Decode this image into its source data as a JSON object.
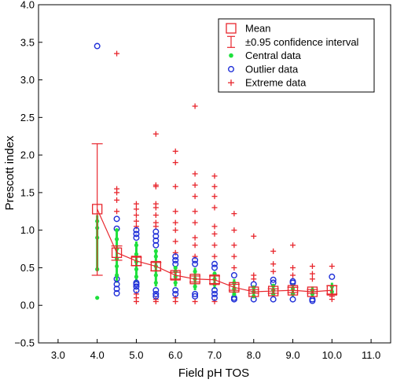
{
  "chart_data": {
    "type": "scatter",
    "title": "",
    "xlabel": "Field pH TOS",
    "ylabel": "Prescott index",
    "xlim": [
      2.5,
      11.5
    ],
    "ylim": [
      -0.5,
      4.0
    ],
    "x_ticks": [
      "3.0",
      "4.0",
      "5.0",
      "6.0",
      "7.0",
      "8.0",
      "9.0",
      "10.0",
      "11.0"
    ],
    "y_ticks": [
      "−0.5",
      "0.0",
      "0.5",
      "1.0",
      "1.5",
      "2.0",
      "2.5",
      "3.0",
      "3.5",
      "4.0"
    ],
    "grid": false,
    "legend_position": "top-right",
    "legend": [
      {
        "key": "mean",
        "label": "Mean",
        "color": "#e8262d"
      },
      {
        "key": "ci",
        "label": "±0.95 confidence interval",
        "color": "#e8262d"
      },
      {
        "key": "central",
        "label": "Central data",
        "color": "#1ee03c"
      },
      {
        "key": "outlier",
        "label": "Outlier data",
        "color": "#1f2fd8"
      },
      {
        "key": "extreme",
        "label": "Extreme data",
        "color": "#e8262d"
      }
    ],
    "groups": [
      {
        "x": 4.0,
        "mean": 1.28,
        "ci": [
          0.4,
          2.15
        ],
        "central_range": [
          0.48,
          1.2
        ],
        "central": [
          0.1,
          0.48,
          0.9,
          1.03,
          1.12
        ],
        "outlier": [
          3.45
        ],
        "extreme": []
      },
      {
        "x": 4.5,
        "mean": 0.7,
        "ci": [
          0.6,
          0.79
        ],
        "central_range": [
          0.3,
          1.02
        ],
        "central": [
          0.4,
          0.52,
          0.62,
          0.75,
          0.88,
          1.0
        ],
        "outlier": [
          0.16,
          0.22,
          0.28,
          0.35,
          1.02,
          1.15
        ],
        "extreme": [
          1.25,
          1.4,
          1.5,
          1.55,
          3.35
        ]
      },
      {
        "x": 5.0,
        "mean": 0.59,
        "ci": [
          0.53,
          0.64
        ],
        "central_range": [
          0.32,
          0.85
        ],
        "central": [
          0.38,
          0.48,
          0.58,
          0.68,
          0.8
        ],
        "outlier": [
          0.2,
          0.25,
          0.28,
          0.3,
          0.9,
          0.95,
          1.0
        ],
        "extreme": [
          0.05,
          0.1,
          0.15,
          1.05,
          1.12,
          1.2,
          1.28,
          1.35
        ]
      },
      {
        "x": 5.5,
        "mean": 0.52,
        "ci": [
          0.46,
          0.57
        ],
        "central_range": [
          0.25,
          0.75
        ],
        "central": [
          0.3,
          0.4,
          0.52,
          0.65,
          0.72
        ],
        "outlier": [
          0.12,
          0.15,
          0.2,
          0.8,
          0.86,
          0.92,
          0.98
        ],
        "extreme": [
          0.05,
          0.08,
          1.05,
          1.1,
          1.2,
          1.3,
          1.35,
          1.58,
          1.6,
          2.28
        ]
      },
      {
        "x": 6.0,
        "mean": 0.4,
        "ci": [
          0.35,
          0.44
        ],
        "central_range": [
          0.25,
          0.5
        ],
        "central": [
          0.3,
          0.38,
          0.45,
          0.5
        ],
        "outlier": [
          0.15,
          0.2,
          0.55,
          0.6,
          0.65
        ],
        "extreme": [
          0.05,
          0.1,
          0.7,
          0.85,
          1.0,
          1.1,
          1.25,
          1.58,
          1.9,
          2.05
        ]
      },
      {
        "x": 6.5,
        "mean": 0.35,
        "ci": [
          0.31,
          0.39
        ],
        "central_range": [
          0.2,
          0.5
        ],
        "central": [
          0.25,
          0.35,
          0.45
        ],
        "outlier": [
          0.12,
          0.15,
          0.55,
          0.6
        ],
        "extreme": [
          0.05,
          0.65,
          0.8,
          0.9,
          1.1,
          1.25,
          1.45,
          1.6,
          1.75,
          2.65
        ]
      },
      {
        "x": 7.0,
        "mean": 0.34,
        "ci": [
          0.29,
          0.39
        ],
        "central_range": [
          0.22,
          0.45
        ],
        "central": [
          0.28,
          0.35,
          0.42
        ],
        "outlier": [
          0.1,
          0.15,
          0.2,
          0.5,
          0.55
        ],
        "extreme": [
          0.05,
          0.65,
          0.8,
          0.95,
          1.05,
          1.3,
          1.45,
          1.58,
          1.72
        ]
      },
      {
        "x": 7.5,
        "mean": 0.24,
        "ci": [
          0.2,
          0.28
        ],
        "central_range": [
          0.12,
          0.35
        ],
        "central": [
          0.15,
          0.22,
          0.3
        ],
        "outlier": [
          0.08,
          0.1,
          0.4
        ],
        "extreme": [
          0.5,
          0.65,
          0.8,
          1.0,
          1.22
        ]
      },
      {
        "x": 8.0,
        "mean": 0.18,
        "ci": [
          0.16,
          0.21
        ],
        "central_range": [
          0.1,
          0.25
        ],
        "central": [
          0.12,
          0.18,
          0.24
        ],
        "outlier": [
          0.08,
          0.28
        ],
        "extreme": [
          0.35,
          0.4,
          0.92
        ]
      },
      {
        "x": 8.5,
        "mean": 0.19,
        "ci": [
          0.16,
          0.22
        ],
        "central_range": [
          0.12,
          0.28
        ],
        "central": [
          0.15,
          0.2,
          0.26
        ],
        "outlier": [
          0.08,
          0.3,
          0.34
        ],
        "extreme": [
          0.45,
          0.55,
          0.72
        ]
      },
      {
        "x": 9.0,
        "mean": 0.2,
        "ci": [
          0.17,
          0.24
        ],
        "central_range": [
          0.12,
          0.28
        ],
        "central": [
          0.15,
          0.22
        ],
        "outlier": [
          0.08,
          0.3,
          0.32
        ],
        "extreme": [
          0.4,
          0.5,
          0.8
        ]
      },
      {
        "x": 9.5,
        "mean": 0.18,
        "ci": [
          0.16,
          0.21
        ],
        "central_range": [
          0.12,
          0.25
        ],
        "central": [
          0.15,
          0.2
        ],
        "outlier": [
          0.06,
          0.08
        ],
        "extreme": [
          0.35,
          0.42,
          0.52
        ]
      },
      {
        "x": 10.0,
        "mean": 0.2,
        "ci": [
          0.15,
          0.26
        ],
        "central_range": [
          0.15,
          0.3
        ],
        "central": [
          0.18,
          0.25
        ],
        "outlier": [
          0.38
        ],
        "extreme": [
          0.08,
          0.12,
          0.52
        ]
      }
    ]
  }
}
